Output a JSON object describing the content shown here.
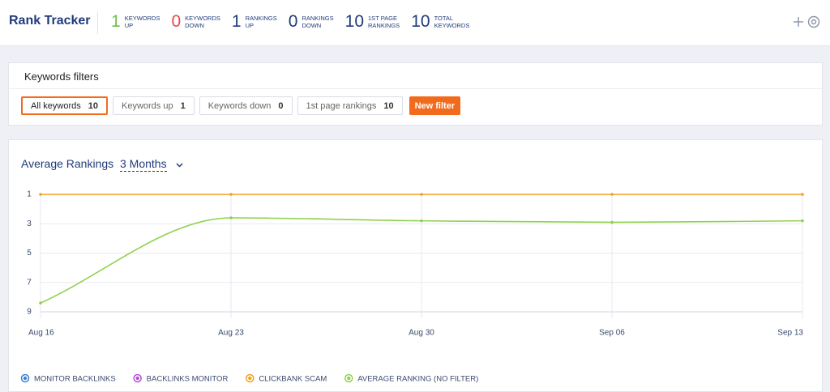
{
  "header": {
    "title": "Rank Tracker",
    "stats": [
      {
        "value": 1,
        "lines": [
          "KEYWORDS",
          "UP"
        ],
        "color": "#6cbf4a"
      },
      {
        "value": 0,
        "lines": [
          "KEYWORDS",
          "DOWN"
        ],
        "color": "#e5484d"
      },
      {
        "value": 1,
        "lines": [
          "RANKINGS",
          "UP"
        ],
        "color": "#1f3b7a"
      },
      {
        "value": 0,
        "lines": [
          "RANKINGS",
          "DOWN"
        ],
        "color": "#1f3b7a"
      },
      {
        "value": 10,
        "lines": [
          "1ST PAGE",
          "RANKINGS"
        ],
        "color": "#1f3b7a"
      },
      {
        "value": 10,
        "lines": [
          "TOTAL",
          "KEYWORDS"
        ],
        "color": "#1f3b7a"
      }
    ]
  },
  "filters": {
    "title": "Keywords filters",
    "items": [
      {
        "label": "All keywords",
        "count": 10,
        "active": true
      },
      {
        "label": "Keywords up",
        "count": 1,
        "active": false
      },
      {
        "label": "Keywords down",
        "count": 0,
        "active": false
      },
      {
        "label": "1st page rankings",
        "count": 10,
        "active": false
      }
    ],
    "new_filter": "New filter"
  },
  "chart_data": {
    "type": "line",
    "title": "Average Rankings",
    "period": "3 Months",
    "x": [
      "Aug 16",
      "Aug 23",
      "Aug 30",
      "Sep 06",
      "Sep 13"
    ],
    "ylim": [
      1,
      9
    ],
    "y_inverted": true,
    "yticks": [
      1,
      3,
      5,
      7,
      9
    ],
    "grid": true,
    "series": [
      {
        "name": "MONITOR BACKLINKS",
        "color": "#3b82d6",
        "values": [
          null,
          null,
          null,
          null,
          null
        ]
      },
      {
        "name": "BACKLINKS MONITOR",
        "color": "#b44fd6",
        "values": [
          null,
          null,
          null,
          null,
          null
        ]
      },
      {
        "name": "CLICKBANK SCAM",
        "color": "#f0a020",
        "values": [
          1,
          1,
          1,
          1,
          1
        ]
      },
      {
        "name": "AVERAGE RANKING (NO FILTER)",
        "color": "#8fd14f",
        "values": [
          8.4,
          2.6,
          2.8,
          2.9,
          2.8
        ]
      }
    ]
  }
}
